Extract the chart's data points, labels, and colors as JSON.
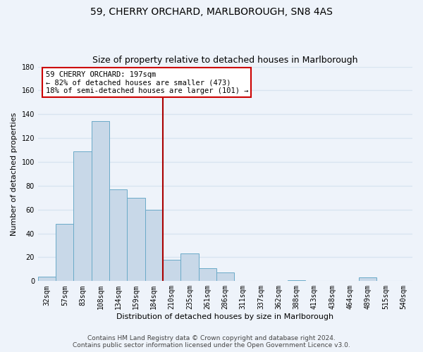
{
  "title": "59, CHERRY ORCHARD, MARLBOROUGH, SN8 4AS",
  "subtitle": "Size of property relative to detached houses in Marlborough",
  "xlabel": "Distribution of detached houses by size in Marlborough",
  "ylabel": "Number of detached properties",
  "bin_labels": [
    "32sqm",
    "57sqm",
    "83sqm",
    "108sqm",
    "134sqm",
    "159sqm",
    "184sqm",
    "210sqm",
    "235sqm",
    "261sqm",
    "286sqm",
    "311sqm",
    "337sqm",
    "362sqm",
    "388sqm",
    "413sqm",
    "438sqm",
    "464sqm",
    "489sqm",
    "515sqm",
    "540sqm"
  ],
  "bar_values": [
    4,
    48,
    109,
    134,
    77,
    70,
    60,
    18,
    23,
    11,
    7,
    0,
    0,
    0,
    1,
    0,
    0,
    0,
    3,
    0,
    0
  ],
  "bar_color": "#c8d8e8",
  "bar_edge_color": "#6aaac8",
  "property_line_color": "#aa0000",
  "annotation_text": "59 CHERRY ORCHARD: 197sqm\n← 82% of detached houses are smaller (473)\n18% of semi-detached houses are larger (101) →",
  "annotation_box_color": "#ffffff",
  "annotation_box_edge": "#cc0000",
  "ylim": [
    0,
    180
  ],
  "yticks": [
    0,
    20,
    40,
    60,
    80,
    100,
    120,
    140,
    160,
    180
  ],
  "footer_line1": "Contains HM Land Registry data © Crown copyright and database right 2024.",
  "footer_line2": "Contains public sector information licensed under the Open Government Licence v3.0.",
  "bg_color": "#eef3fa",
  "plot_bg_color": "#eef3fa",
  "grid_color": "#d8e4f0",
  "title_fontsize": 10,
  "subtitle_fontsize": 9,
  "label_fontsize": 8,
  "tick_fontsize": 7,
  "footer_fontsize": 6.5,
  "ann_fontsize": 7.5
}
